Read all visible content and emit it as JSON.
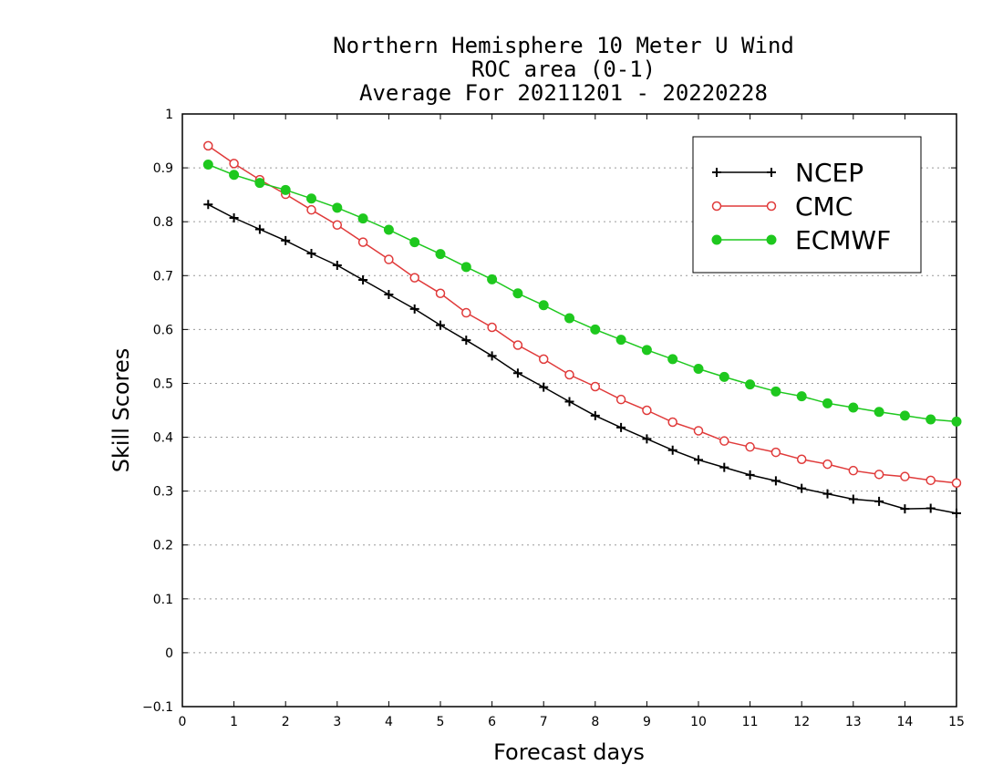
{
  "chart_data": {
    "type": "line",
    "title_lines": [
      "Northern Hemisphere 10 Meter U Wind",
      "ROC area (0-1)",
      "Average For 20211201 - 20220228"
    ],
    "xlabel": "Forecast days",
    "ylabel": "Skill Scores",
    "xlim": [
      0,
      15
    ],
    "ylim": [
      -0.1,
      1
    ],
    "xticks": [
      "0",
      "1",
      "2",
      "3",
      "4",
      "5",
      "6",
      "7",
      "8",
      "9",
      "10",
      "11",
      "12",
      "13",
      "14",
      "15"
    ],
    "yticks": [
      "−0.1",
      "0",
      "0.1",
      "0.2",
      "0.3",
      "0.4",
      "0.5",
      "0.6",
      "0.7",
      "0.8",
      "0.9",
      "1"
    ],
    "grid": true,
    "legend_position": "top-right",
    "x": [
      0.5,
      1,
      1.5,
      2,
      2.5,
      3,
      3.5,
      4,
      4.5,
      5,
      5.5,
      6,
      6.5,
      7,
      7.5,
      8,
      8.5,
      9,
      9.5,
      10,
      10.5,
      11,
      11.5,
      12,
      12.5,
      13,
      13.5,
      14,
      14.5,
      15
    ],
    "series": [
      {
        "name": "NCEP",
        "color": "#000000",
        "marker": "plus",
        "values": [
          0.832,
          0.807,
          0.786,
          0.765,
          0.741,
          0.719,
          0.692,
          0.665,
          0.638,
          0.608,
          0.58,
          0.551,
          0.519,
          0.493,
          0.466,
          0.44,
          0.418,
          0.397,
          0.376,
          0.358,
          0.344,
          0.33,
          0.319,
          0.305,
          0.295,
          0.285,
          0.281,
          0.267,
          0.268,
          0.259
        ]
      },
      {
        "name": "CMC",
        "color": "#e03a3a",
        "marker": "open-circle",
        "values": [
          0.941,
          0.908,
          0.878,
          0.851,
          0.822,
          0.794,
          0.762,
          0.73,
          0.696,
          0.667,
          0.631,
          0.604,
          0.571,
          0.545,
          0.516,
          0.494,
          0.47,
          0.45,
          0.428,
          0.412,
          0.393,
          0.382,
          0.372,
          0.359,
          0.35,
          0.338,
          0.331,
          0.327,
          0.32,
          0.315
        ]
      },
      {
        "name": "ECMWF",
        "color": "#1ec81e",
        "marker": "filled-circle",
        "values": [
          0.906,
          0.887,
          0.872,
          0.859,
          0.843,
          0.826,
          0.806,
          0.785,
          0.762,
          0.74,
          0.716,
          0.693,
          0.667,
          0.645,
          0.621,
          0.6,
          0.581,
          0.562,
          0.545,
          0.527,
          0.512,
          0.498,
          0.485,
          0.476,
          0.463,
          0.455,
          0.447,
          0.44,
          0.433,
          0.429
        ]
      }
    ]
  }
}
